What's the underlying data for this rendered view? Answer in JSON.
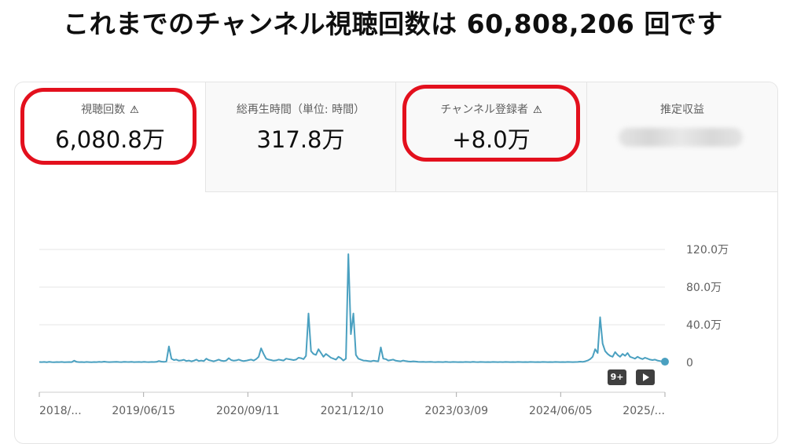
{
  "headline": "これまでのチャンネル視聴回数は 60,808,206 回です",
  "tabs": [
    {
      "label": "視聴回数",
      "value": "6,080.8万",
      "warning_icon": "warning-triangle-icon",
      "selected": true
    },
    {
      "label": "総再生時間（単位: 時間）",
      "value": "317.8万",
      "selected": false
    },
    {
      "label": "チャンネル登録者",
      "value": "+8.0万",
      "warning_icon": "warning-triangle-icon",
      "selected": false
    },
    {
      "label": "推定収益",
      "value": "",
      "value_hidden": true,
      "selected": false
    }
  ],
  "warning_glyph": "⚠",
  "annotation_color": "#e3101d",
  "line_color": "#4aa0c0",
  "chart_controls": {
    "badge_label": "9+",
    "play_icon": "play-icon"
  },
  "chart_data": {
    "type": "line",
    "x_tick_labels": [
      "2018/...",
      "2019/06/15",
      "2020/09/11",
      "2021/12/10",
      "2023/03/09",
      "2024/06/05",
      "2025/..."
    ],
    "y_tick_labels": [
      "120.0万",
      "80.0万",
      "40.0万",
      "0"
    ],
    "ylim": [
      0,
      1200000
    ],
    "grid": true,
    "series": [
      {
        "values": [
          4000,
          3000,
          5000,
          2000,
          6000,
          3000,
          2000,
          4000,
          3000,
          5000,
          2000,
          3000,
          4000,
          3000,
          18000,
          6000,
          3000,
          4000,
          2000,
          5000,
          3000,
          2000,
          4000,
          3000,
          6000,
          4000,
          8000,
          5000,
          3000,
          4000,
          5000,
          6000,
          4000,
          3000,
          7000,
          5000,
          4000,
          6000,
          3000,
          4000,
          5000,
          3000,
          6000,
          4000,
          3000,
          5000,
          4000,
          6000,
          15000,
          8000,
          6000,
          10000,
          170000,
          40000,
          25000,
          30000,
          18000,
          22000,
          28000,
          15000,
          20000,
          12000,
          18000,
          30000,
          15000,
          20000,
          14000,
          40000,
          25000,
          18000,
          12000,
          20000,
          30000,
          18000,
          14000,
          20000,
          45000,
          25000,
          18000,
          22000,
          30000,
          20000,
          14000,
          18000,
          25000,
          30000,
          20000,
          35000,
          60000,
          150000,
          90000,
          40000,
          30000,
          25000,
          18000,
          22000,
          30000,
          25000,
          20000,
          40000,
          35000,
          30000,
          25000,
          30000,
          50000,
          45000,
          35000,
          70000,
          520000,
          120000,
          90000,
          80000,
          140000,
          100000,
          60000,
          90000,
          70000,
          50000,
          40000,
          30000,
          60000,
          45000,
          20000,
          40000,
          1150000,
          300000,
          520000,
          80000,
          40000,
          30000,
          20000,
          18000,
          15000,
          12000,
          18000,
          15000,
          12000,
          160000,
          40000,
          35000,
          20000,
          25000,
          30000,
          18000,
          15000,
          12000,
          20000,
          14000,
          10000,
          8000,
          12000,
          9000,
          7000,
          5000,
          6000,
          4000,
          5000,
          6000,
          4000,
          3000,
          5000,
          4000,
          3000,
          6000,
          4000,
          3000,
          5000,
          4000,
          3000,
          4000,
          3000,
          5000,
          4000,
          3000,
          6000,
          4000,
          3000,
          5000,
          4000,
          3000,
          4000,
          3000,
          5000,
          4000,
          3000,
          4000,
          3000,
          5000,
          4000,
          3000,
          4000,
          3000,
          5000,
          4000,
          3000,
          4000,
          3000,
          5000,
          4000,
          3000,
          4000,
          3000,
          5000,
          4000,
          3000,
          4000,
          3000,
          5000,
          4000,
          3000,
          4000,
          3000,
          5000,
          4000,
          3000,
          4000,
          5000,
          8000,
          6000,
          12000,
          20000,
          35000,
          60000,
          140000,
          100000,
          480000,
          200000,
          120000,
          90000,
          70000,
          60000,
          110000,
          80000,
          60000,
          90000,
          70000,
          100000,
          60000,
          50000,
          40000,
          60000,
          45000,
          35000,
          50000,
          40000,
          30000,
          25000,
          30000,
          20000,
          15000,
          10000,
          8000
        ]
      }
    ]
  }
}
